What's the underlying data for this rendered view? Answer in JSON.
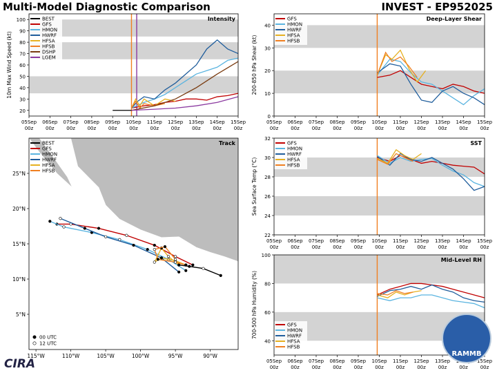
{
  "page": {
    "title_left": "Multi-Model Diagnostic Comparison",
    "title_right": "INVEST - EP952025",
    "footer_text": "CIRA",
    "badge_text": "RAMMB"
  },
  "colors": {
    "BEST": "#000000",
    "GFS": "#c00000",
    "HMON": "#5ab4e0",
    "HWRF": "#1f5d9c",
    "HFSA": "#e6b020",
    "HFSB": "#f07f20",
    "DSHP": "#7a3b10",
    "LGEM": "#8b3aa0"
  },
  "chart_data": [
    {
      "id": "intensity",
      "type": "line",
      "title": "Intensity",
      "ylabel": "10m Max Wind Speed (kt)",
      "ylim": [
        15,
        105
      ],
      "yticks": [
        20,
        30,
        40,
        50,
        60,
        70,
        80,
        90,
        100
      ],
      "xticks": [
        "05Sep\n00z",
        "06Sep\n00z",
        "07Sep\n00z",
        "08Sep\n00z",
        "09Sep\n00z",
        "10Sep\n00z",
        "11Sep\n00z",
        "12Sep\n00z",
        "13Sep\n00z",
        "14Sep\n00z",
        "15Sep\n00z"
      ],
      "xlim": [
        0,
        10
      ],
      "bands": [
        [
          35,
          50
        ],
        [
          65,
          80
        ],
        [
          85,
          100
        ]
      ],
      "vlines": [
        {
          "x": 4.9,
          "color": "#f07f20"
        },
        {
          "x": 5.15,
          "color": "#8b3aa0"
        }
      ],
      "legend": [
        "BEST",
        "GFS",
        "HMON",
        "HWRF",
        "HFSA",
        "HFSB",
        "DSHP",
        "LGEM"
      ],
      "series": [
        {
          "name": "BEST",
          "x": [
            4.0,
            4.9
          ],
          "y": [
            20,
            20
          ]
        },
        {
          "name": "GFS",
          "x": [
            4.9,
            5.5,
            6.0,
            6.5,
            7.0,
            7.5,
            8.0,
            8.5,
            9.0,
            9.5,
            10
          ],
          "y": [
            22,
            24,
            25,
            27,
            28,
            30,
            30,
            29,
            32,
            33,
            35
          ]
        },
        {
          "name": "HMON",
          "x": [
            4.9,
            5.5,
            6.0,
            6.5,
            7.0,
            7.5,
            8.0,
            8.5,
            9.0,
            9.5,
            10
          ],
          "y": [
            22,
            27,
            30,
            34,
            40,
            46,
            52,
            55,
            58,
            64,
            66
          ]
        },
        {
          "name": "HWRF",
          "x": [
            4.9,
            5.2,
            5.5,
            6.0,
            6.5,
            7.0,
            7.5,
            8.0,
            8.5,
            9.0,
            9.5,
            10
          ],
          "y": [
            22,
            28,
            32,
            30,
            38,
            44,
            52,
            60,
            74,
            82,
            74,
            70
          ]
        },
        {
          "name": "HFSA",
          "x": [
            4.9,
            5.1,
            5.3,
            5.5,
            6.0,
            6.5,
            7.0
          ],
          "y": [
            22,
            30,
            24,
            30,
            24,
            30,
            28
          ]
        },
        {
          "name": "HFSB",
          "x": [
            4.9,
            5.1,
            5.3,
            5.5,
            6.0,
            6.5
          ],
          "y": [
            22,
            28,
            22,
            26,
            24,
            26
          ]
        },
        {
          "name": "DSHP",
          "x": [
            4.9,
            6,
            7,
            8,
            9,
            10
          ],
          "y": [
            20,
            24,
            30,
            40,
            52,
            63
          ]
        },
        {
          "name": "LGEM",
          "x": [
            4.9,
            6,
            7,
            8,
            9,
            10
          ],
          "y": [
            20,
            21,
            22,
            24,
            27,
            32
          ]
        }
      ]
    },
    {
      "id": "shear",
      "type": "line",
      "title": "Deep-Layer Shear",
      "ylabel": "200-850 hPa Shear (kt)",
      "ylim": [
        0,
        45
      ],
      "yticks": [
        0,
        10,
        20,
        30,
        40
      ],
      "xticks": [
        "05Sep\n00z",
        "06Sep\n00z",
        "07Sep\n00z",
        "08Sep\n00z",
        "09Sep\n00z",
        "10Sep\n00z",
        "11Sep\n00z",
        "12Sep\n00z",
        "13Sep\n00z",
        "14Sep\n00z",
        "15Sep\n00z"
      ],
      "xlim": [
        0,
        10
      ],
      "bands": [
        [
          10,
          20
        ],
        [
          30,
          40
        ]
      ],
      "vlines": [
        {
          "x": 4.9,
          "color": "#f07f20"
        }
      ],
      "legend": [
        "GFS",
        "HMON",
        "HWRF",
        "HFSA",
        "HFSB"
      ],
      "series": [
        {
          "name": "GFS",
          "x": [
            4.9,
            5.5,
            6.0,
            6.5,
            7.0,
            7.5,
            8.0,
            8.5,
            9.0,
            9.5,
            10
          ],
          "y": [
            17,
            18,
            20,
            17,
            14,
            13,
            12,
            14,
            13,
            11,
            10
          ]
        },
        {
          "name": "HMON",
          "x": [
            4.9,
            5.5,
            6.0,
            6.5,
            7.0,
            7.5,
            8.0,
            8.5,
            9.0,
            9.5,
            10
          ],
          "y": [
            18,
            25,
            24,
            19,
            15,
            14,
            11,
            8,
            5,
            9,
            12
          ]
        },
        {
          "name": "HWRF",
          "x": [
            4.9,
            5.5,
            6.0,
            6.5,
            7.0,
            7.5,
            8.0,
            8.5,
            9.0,
            9.5,
            10
          ],
          "y": [
            19,
            23,
            22,
            14,
            7,
            6,
            11,
            13,
            10,
            8,
            5
          ]
        },
        {
          "name": "HFSA",
          "x": [
            4.9,
            5.3,
            5.6,
            6.0,
            6.4,
            6.8,
            7.2
          ],
          "y": [
            18,
            27,
            25,
            29,
            21,
            15,
            20
          ]
        },
        {
          "name": "HFSB",
          "x": [
            4.9,
            5.3,
            5.6,
            6.0,
            6.4,
            6.8
          ],
          "y": [
            18,
            28,
            24,
            26,
            22,
            17
          ]
        }
      ]
    },
    {
      "id": "sst",
      "type": "line",
      "title": "SST",
      "ylabel": "Sea Surface Temp (°C)",
      "ylim": [
        22,
        32
      ],
      "yticks": [
        22,
        24,
        26,
        28,
        30,
        32
      ],
      "xticks": [
        "05Sep\n00z",
        "06Sep\n00z",
        "07Sep\n00z",
        "08Sep\n00z",
        "09Sep\n00z",
        "10Sep\n00z",
        "11Sep\n00z",
        "12Sep\n00z",
        "13Sep\n00z",
        "14Sep\n00z",
        "15Sep\n00z"
      ],
      "xlim": [
        0,
        10
      ],
      "bands": [
        [
          24,
          26
        ],
        [
          28,
          30
        ]
      ],
      "vlines": [
        {
          "x": 4.9,
          "color": "#f07f20"
        }
      ],
      "legend": [
        "GFS",
        "HMON",
        "HWRF",
        "HFSA",
        "HFSB"
      ],
      "series": [
        {
          "name": "GFS",
          "x": [
            4.9,
            5.5,
            6.0,
            6.5,
            7.0,
            7.5,
            8.0,
            8.5,
            9.0,
            9.5,
            10
          ],
          "y": [
            30.0,
            29.6,
            30.2,
            29.8,
            29.4,
            29.6,
            29.4,
            29.2,
            29.1,
            29.0,
            28.3
          ]
        },
        {
          "name": "HMON",
          "x": [
            4.9,
            5.5,
            6.0,
            6.5,
            7.0,
            7.5,
            8.0,
            8.5,
            9.0,
            9.5,
            10
          ],
          "y": [
            30.2,
            29.4,
            30.0,
            29.6,
            29.8,
            29.9,
            29.2,
            28.6,
            28.2,
            27.4,
            27.0
          ]
        },
        {
          "name": "HWRF",
          "x": [
            4.9,
            5.5,
            6.0,
            6.5,
            7.0,
            7.5,
            8.0,
            8.5,
            9.0,
            9.5,
            10
          ],
          "y": [
            30.1,
            29.2,
            30.4,
            29.8,
            29.6,
            30.0,
            29.4,
            28.8,
            27.8,
            26.6,
            27.0
          ]
        },
        {
          "name": "HFSA",
          "x": [
            4.9,
            5.4,
            5.8,
            6.2,
            6.6,
            7.0
          ],
          "y": [
            29.9,
            29.4,
            30.8,
            30.2,
            29.8,
            30.4
          ]
        },
        {
          "name": "HFSB",
          "x": [
            4.9,
            5.4,
            5.8,
            6.2,
            6.6
          ],
          "y": [
            29.8,
            29.3,
            30.4,
            30.0,
            29.6
          ]
        }
      ]
    },
    {
      "id": "rh",
      "type": "line",
      "title": "Mid-Level RH",
      "ylabel": "700-500 hPa Humidity (%)",
      "ylim": [
        30,
        100
      ],
      "yticks": [
        40,
        60,
        80,
        100
      ],
      "xticks": [
        "05Sep\n00z",
        "06Sep\n00z",
        "07Sep\n00z",
        "08Sep\n00z",
        "09Sep\n00z",
        "10Sep\n00z",
        "11Sep\n00z",
        "12Sep\n00z",
        "13Sep\n00z",
        "14Sep\n00z",
        "15Sep\n00z"
      ],
      "xlim": [
        0,
        10
      ],
      "bands": [
        [
          40,
          60
        ],
        [
          80,
          100
        ]
      ],
      "vlines": [
        {
          "x": 4.9,
          "color": "#f07f20"
        }
      ],
      "legend": [
        "GFS",
        "HMON",
        "HWRF",
        "HFSA",
        "HFSB"
      ],
      "series": [
        {
          "name": "GFS",
          "x": [
            4.9,
            5.5,
            6.0,
            6.5,
            7.0,
            7.5,
            8.0,
            8.5,
            9.0,
            9.5,
            10
          ],
          "y": [
            72,
            76,
            78,
            80,
            80,
            79,
            78,
            76,
            74,
            72,
            70
          ]
        },
        {
          "name": "HMON",
          "x": [
            4.9,
            5.5,
            6.0,
            6.5,
            7.0,
            7.5,
            8.0,
            8.5,
            9.0,
            9.5,
            10
          ],
          "y": [
            70,
            68,
            70,
            70,
            72,
            72,
            70,
            68,
            67,
            66,
            63
          ]
        },
        {
          "name": "HWRF",
          "x": [
            4.9,
            5.5,
            6.0,
            6.5,
            7.0,
            7.5,
            8.0,
            8.5,
            9.0,
            9.5,
            10
          ],
          "y": [
            71,
            75,
            76,
            78,
            76,
            79,
            76,
            74,
            70,
            68,
            67
          ]
        },
        {
          "name": "HFSA",
          "x": [
            4.9,
            5.4,
            5.8,
            6.2,
            6.6,
            7.0
          ],
          "y": [
            72,
            70,
            74,
            72,
            74,
            75
          ]
        },
        {
          "name": "HFSB",
          "x": [
            4.9,
            5.4,
            5.8,
            6.2,
            6.6
          ],
          "y": [
            73,
            72,
            75,
            73,
            74
          ]
        }
      ]
    },
    {
      "id": "track",
      "type": "map",
      "title": "Track",
      "xlim": [
        -116,
        -86
      ],
      "ylim": [
        0,
        30
      ],
      "xticks": [
        -115,
        -110,
        -105,
        -100,
        -95,
        -90
      ],
      "xtick_labels": [
        "115°W",
        "110°W",
        "105°W",
        "100°W",
        "95°W",
        "90°W"
      ],
      "yticks": [
        5,
        10,
        15,
        20,
        25
      ],
      "ytick_labels": [
        "5°N",
        "10°N",
        "15°N",
        "20°N",
        "25°N"
      ],
      "legend": [
        "BEST",
        "GFS",
        "HMON",
        "HWRF",
        "HFSA",
        "HFSB"
      ],
      "marker_legend": [
        "00 UTC",
        "12 UTC"
      ],
      "series": [
        {
          "name": "BEST",
          "lon": [
            -88.5,
            -91,
            -93,
            -94.5
          ],
          "lat": [
            10.5,
            11.5,
            11.8,
            12.0
          ]
        },
        {
          "name": "GFS",
          "lon": [
            -92.5,
            -95,
            -98,
            -102,
            -106,
            -110,
            -112
          ],
          "lat": [
            12,
            13.2,
            14.8,
            16.2,
            17.2,
            17.8,
            17.8
          ]
        },
        {
          "name": "HMON",
          "lon": [
            -93.5,
            -96,
            -99,
            -103,
            -107,
            -111,
            -113
          ],
          "lat": [
            11.2,
            12.8,
            14.2,
            15.6,
            16.6,
            17.4,
            18.2
          ]
        },
        {
          "name": "HWRF",
          "lon": [
            -94.5,
            -97,
            -101,
            -105,
            -108,
            -111.5
          ],
          "lat": [
            11.0,
            13.0,
            14.8,
            16.0,
            17.2,
            18.6
          ]
        },
        {
          "name": "HFSA",
          "lon": [
            -93.5,
            -95,
            -97,
            -98,
            -97,
            -96,
            -94.5
          ],
          "lat": [
            12,
            12.6,
            13.0,
            12.4,
            14.4,
            13.2,
            12.0
          ]
        },
        {
          "name": "HFSB",
          "lon": [
            -93.5,
            -95,
            -97.5,
            -98,
            -96.5,
            -95
          ],
          "lat": [
            12,
            12.4,
            12.8,
            14.2,
            14.6,
            12.8
          ]
        }
      ]
    }
  ]
}
